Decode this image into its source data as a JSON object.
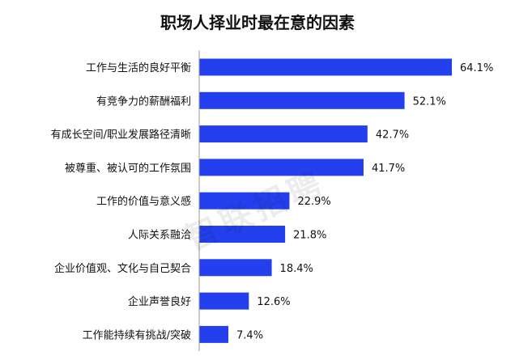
{
  "chart_data": {
    "type": "bar",
    "orientation": "horizontal",
    "title": "职场人择业时最在意的因素",
    "categories": [
      "工作与生活的良好平衡",
      "有竞争力的薪酬福利",
      "有成长空间/职业发展路径清晰",
      "被尊重、被认可的工作氛围",
      "工作的价值与意义感",
      "人际关系融洽",
      "企业价值观、文化与自己契合",
      "企业声誉良好",
      "工作能持续有挑战/突破"
    ],
    "values": [
      64.1,
      52.1,
      42.7,
      41.7,
      22.9,
      21.8,
      18.4,
      12.6,
      7.4
    ],
    "value_labels": [
      "64.1%",
      "52.1%",
      "42.7%",
      "41.7%",
      "22.9%",
      "21.8%",
      "18.4%",
      "12.6%",
      "7.4%"
    ],
    "xlim": [
      0,
      100
    ],
    "grid": false,
    "legend": "none",
    "bar_color": "#2440ee"
  },
  "watermark": "智联招聘"
}
